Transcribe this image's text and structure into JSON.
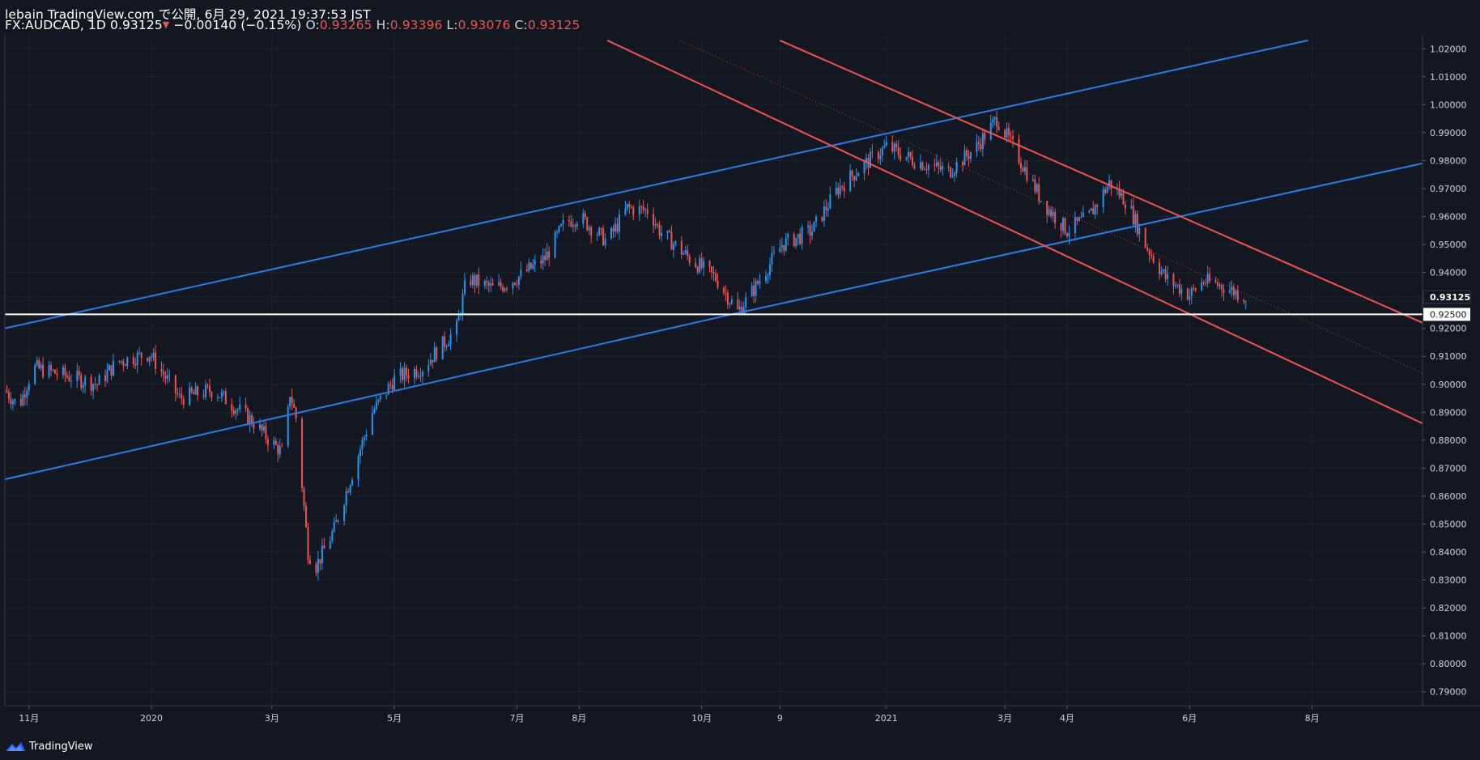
{
  "header": {
    "publish_line": "lebain TradingView.com で公開, 6月 29, 2021 19:37:53 JST",
    "symbol_interval": "FX:AUDCAD, 1D",
    "last_price": "0.93125",
    "change": "−0.00140 (−0.15%)",
    "open_label": "O:",
    "open": "0.93265",
    "high_label": "H:",
    "high": "0.93396",
    "low_label": "L:",
    "low": "0.93076",
    "close_label": "C:",
    "close": "0.93125"
  },
  "footer": {
    "brand": "TradingView"
  },
  "colors": {
    "background": "#131722",
    "up": "#2962ff",
    "up_candle": "#2196f3",
    "down": "#ef5350",
    "channel_blue": "#2c7be5",
    "channel_red": "#f05350",
    "horizontal": "#ffffff",
    "grid": "#1e222d"
  },
  "chart_data": {
    "type": "candlestick",
    "symbol": "FX:AUDCAD",
    "interval": "1D",
    "title": "FX:AUDCAD, 1D",
    "y_axis": {
      "ylim": [
        0.785,
        1.025
      ],
      "tick_labels": [
        "1.02000",
        "1.01000",
        "1.00000",
        "0.99000",
        "0.98000",
        "0.97000",
        "0.96000",
        "0.95000",
        "0.94000",
        "0.93000",
        "0.92000",
        "0.91000",
        "0.90000",
        "0.89000",
        "0.88000",
        "0.87000",
        "0.86000",
        "0.85000",
        "0.84000",
        "0.83000",
        "0.82000",
        "0.81000",
        "0.80000",
        "0.79000"
      ],
      "tick_values": [
        1.02,
        1.01,
        1.0,
        0.99,
        0.98,
        0.97,
        0.96,
        0.95,
        0.94,
        0.93,
        0.92,
        0.91,
        0.9,
        0.89,
        0.88,
        0.87,
        0.86,
        0.85,
        0.84,
        0.83,
        0.82,
        0.81,
        0.8,
        0.79
      ]
    },
    "x_axis": {
      "range": [
        "2019-10-20",
        "2021-09-25"
      ],
      "tick_labels": [
        "11月",
        "2020",
        "3月",
        "5月",
        "7月",
        "8月",
        "10月",
        "9",
        "2021",
        "3月",
        "4月",
        "6月",
        "8月"
      ],
      "tick_dates": [
        "2019-11-01",
        "2020-01-01",
        "2020-03-01",
        "2020-05-01",
        "2020-07-01",
        "2020-08-01",
        "2020-10-01",
        "2020-11-09",
        "2021-01-01",
        "2021-03-01",
        "2021-04-01",
        "2021-06-01",
        "2021-08-01"
      ]
    },
    "price_labels": [
      {
        "label": "0.93125",
        "value": 0.93125,
        "role": "last-price"
      },
      {
        "label": "0.92500",
        "value": 0.925,
        "role": "horizontal-line"
      }
    ],
    "key_points": [
      {
        "date": "2019-10-20",
        "close": 0.898
      },
      {
        "date": "2019-10-27",
        "close": 0.892
      },
      {
        "date": "2019-11-03",
        "close": 0.906
      },
      {
        "date": "2019-11-20",
        "close": 0.903
      },
      {
        "date": "2019-12-05",
        "close": 0.9
      },
      {
        "date": "2019-12-15",
        "close": 0.908
      },
      {
        "date": "2019-12-31",
        "close": 0.911
      },
      {
        "date": "2020-01-15",
        "close": 0.895
      },
      {
        "date": "2020-02-01",
        "close": 0.898
      },
      {
        "date": "2020-02-20",
        "close": 0.887
      },
      {
        "date": "2020-03-01",
        "close": 0.879
      },
      {
        "date": "2020-03-07",
        "close": 0.875
      },
      {
        "date": "2020-03-10",
        "close": 0.897
      },
      {
        "date": "2020-03-13",
        "close": 0.888
      },
      {
        "date": "2020-03-19",
        "close": 0.84
      },
      {
        "date": "2020-03-23",
        "close": 0.835
      },
      {
        "date": "2020-04-01",
        "close": 0.848
      },
      {
        "date": "2020-04-09",
        "close": 0.866
      },
      {
        "date": "2020-04-20",
        "close": 0.89
      },
      {
        "date": "2020-05-01",
        "close": 0.902
      },
      {
        "date": "2020-05-15",
        "close": 0.906
      },
      {
        "date": "2020-06-01",
        "close": 0.92
      },
      {
        "date": "2020-06-06",
        "close": 0.938
      },
      {
        "date": "2020-06-20",
        "close": 0.934
      },
      {
        "date": "2020-07-01",
        "close": 0.938
      },
      {
        "date": "2020-07-15",
        "close": 0.945
      },
      {
        "date": "2020-07-25",
        "close": 0.958
      },
      {
        "date": "2020-08-01",
        "close": 0.96
      },
      {
        "date": "2020-08-15",
        "close": 0.951
      },
      {
        "date": "2020-08-25",
        "close": 0.963
      },
      {
        "date": "2020-09-05",
        "close": 0.962
      },
      {
        "date": "2020-09-10",
        "close": 0.955
      },
      {
        "date": "2020-09-25",
        "close": 0.945
      },
      {
        "date": "2020-10-08",
        "close": 0.938
      },
      {
        "date": "2020-10-19",
        "close": 0.926
      },
      {
        "date": "2020-10-28",
        "close": 0.935
      },
      {
        "date": "2020-11-10",
        "close": 0.95
      },
      {
        "date": "2020-11-25",
        "close": 0.955
      },
      {
        "date": "2020-12-08",
        "close": 0.97
      },
      {
        "date": "2020-12-20",
        "close": 0.978
      },
      {
        "date": "2021-01-01",
        "close": 0.985
      },
      {
        "date": "2021-01-15",
        "close": 0.98
      },
      {
        "date": "2021-02-01",
        "close": 0.976
      },
      {
        "date": "2021-02-15",
        "close": 0.985
      },
      {
        "date": "2021-02-25",
        "close": 0.995
      },
      {
        "date": "2021-03-05",
        "close": 0.985
      },
      {
        "date": "2021-03-20",
        "close": 0.965
      },
      {
        "date": "2021-04-01",
        "close": 0.955
      },
      {
        "date": "2021-04-12",
        "close": 0.96
      },
      {
        "date": "2021-04-22",
        "close": 0.972
      },
      {
        "date": "2021-05-01",
        "close": 0.965
      },
      {
        "date": "2021-05-10",
        "close": 0.95
      },
      {
        "date": "2021-05-20",
        "close": 0.938
      },
      {
        "date": "2021-06-01",
        "close": 0.932
      },
      {
        "date": "2021-06-08",
        "close": 0.937
      },
      {
        "date": "2021-06-18",
        "close": 0.935
      },
      {
        "date": "2021-06-29",
        "close": 0.93125
      }
    ],
    "drawings": [
      {
        "name": "upper-blue-channel-line",
        "type": "trendline",
        "color": "blue",
        "points": [
          {
            "date": "2019-10-20",
            "price": 0.92
          },
          {
            "date": "2021-07-30",
            "price": 1.023
          }
        ]
      },
      {
        "name": "middle-blue-channel-line",
        "type": "trendline",
        "color": "blue",
        "points": [
          {
            "date": "2020-10-19",
            "price": 0.9255
          },
          {
            "date": "2021-09-25",
            "price": 0.979
          }
        ]
      },
      {
        "name": "lower-blue-channel-line",
        "type": "trendline",
        "color": "blue",
        "points": [
          {
            "date": "2019-10-20",
            "price": 0.866
          },
          {
            "date": "2020-10-19",
            "price": 0.9255
          }
        ]
      },
      {
        "name": "upper-red-channel-line",
        "type": "trendline",
        "color": "red",
        "points": [
          {
            "date": "2020-11-09",
            "price": 1.023
          },
          {
            "date": "2021-09-25",
            "price": 0.922
          }
        ]
      },
      {
        "name": "lower-red-channel-line",
        "type": "trendline",
        "color": "red",
        "points": [
          {
            "date": "2020-08-15",
            "price": 1.023
          },
          {
            "date": "2021-09-25",
            "price": 0.886
          }
        ]
      },
      {
        "name": "dotted-red-midline",
        "type": "trendline",
        "color": "red",
        "style": "dotted",
        "points": [
          {
            "date": "2020-09-20",
            "price": 1.023
          },
          {
            "date": "2021-09-25",
            "price": 0.904
          }
        ]
      },
      {
        "name": "horizontal-support-line",
        "type": "horizontal",
        "color": "white",
        "price": 0.925
      }
    ]
  }
}
